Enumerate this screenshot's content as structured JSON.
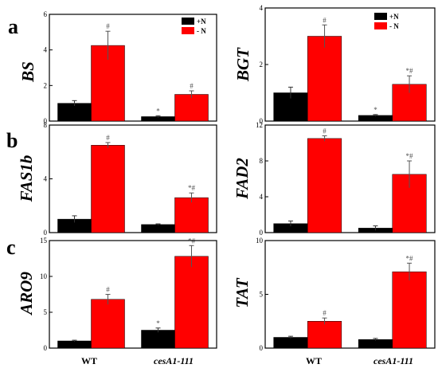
{
  "colors": {
    "plus_n": "#000000",
    "minus_n": "#ff0000"
  },
  "x_categories": [
    "WT",
    "cesA1-111"
  ],
  "legend": [
    {
      "key": "plus_n",
      "label": "+N"
    },
    {
      "key": "minus_n",
      "label": "- N"
    }
  ],
  "panel_letters": [
    "a",
    "b",
    "c"
  ],
  "chart_data": [
    {
      "type": "bar",
      "ylabel": "BS",
      "categories": [
        "WT",
        "cesA1-111"
      ],
      "ylim": [
        0,
        6
      ],
      "yticks": [
        0,
        2,
        4,
        6
      ],
      "series": [
        {
          "name": "+N",
          "values": [
            1.0,
            0.25
          ],
          "errors": [
            0.15,
            0.05
          ],
          "sig": [
            "",
            "*"
          ]
        },
        {
          "name": "- N",
          "values": [
            4.25,
            1.5
          ],
          "errors": [
            0.8,
            0.2
          ],
          "sig": [
            "#",
            "#"
          ]
        }
      ]
    },
    {
      "type": "bar",
      "ylabel": "BGT",
      "categories": [
        "WT",
        "cesA1-111"
      ],
      "ylim": [
        0,
        4
      ],
      "yticks": [
        0,
        2,
        4
      ],
      "series": [
        {
          "name": "+N",
          "values": [
            1.0,
            0.2
          ],
          "errors": [
            0.2,
            0.03
          ],
          "sig": [
            "",
            "*"
          ]
        },
        {
          "name": "- N",
          "values": [
            3.0,
            1.3
          ],
          "errors": [
            0.4,
            0.3
          ],
          "sig": [
            "#",
            "*#"
          ]
        }
      ]
    },
    {
      "type": "bar",
      "ylabel": "FAS1b",
      "categories": [
        "WT",
        "cesA1-111"
      ],
      "ylim": [
        0,
        8
      ],
      "yticks": [
        0,
        4,
        8
      ],
      "series": [
        {
          "name": "+N",
          "values": [
            1.0,
            0.6
          ],
          "errors": [
            0.25,
            0.05
          ],
          "sig": [
            "",
            ""
          ]
        },
        {
          "name": "- N",
          "values": [
            6.5,
            2.6
          ],
          "errors": [
            0.2,
            0.35
          ],
          "sig": [
            "#",
            "*#"
          ]
        }
      ]
    },
    {
      "type": "bar",
      "ylabel": "FAD2",
      "categories": [
        "WT",
        "cesA1-111"
      ],
      "ylim": [
        0,
        12
      ],
      "yticks": [
        0,
        4,
        8,
        12
      ],
      "series": [
        {
          "name": "+N",
          "values": [
            1.0,
            0.5
          ],
          "errors": [
            0.3,
            0.25
          ],
          "sig": [
            "",
            ""
          ]
        },
        {
          "name": "- N",
          "values": [
            10.5,
            6.5
          ],
          "errors": [
            0.3,
            1.5
          ],
          "sig": [
            "#",
            "*#"
          ]
        }
      ]
    },
    {
      "type": "bar",
      "ylabel": "ARO9",
      "categories": [
        "WT",
        "cesA1-111"
      ],
      "ylim": [
        0,
        15
      ],
      "yticks": [
        0,
        5,
        10,
        15
      ],
      "series": [
        {
          "name": "+N",
          "values": [
            1.0,
            2.5
          ],
          "errors": [
            0.1,
            0.3
          ],
          "sig": [
            "",
            "*"
          ]
        },
        {
          "name": "- N",
          "values": [
            6.8,
            12.8
          ],
          "errors": [
            0.7,
            1.5
          ],
          "sig": [
            "#",
            "*#"
          ]
        }
      ]
    },
    {
      "type": "bar",
      "ylabel": "TAT",
      "categories": [
        "WT",
        "cesA1-111"
      ],
      "ylim": [
        0,
        10
      ],
      "yticks": [
        0,
        5,
        10
      ],
      "series": [
        {
          "name": "+N",
          "values": [
            1.0,
            0.8
          ],
          "errors": [
            0.1,
            0.1
          ],
          "sig": [
            "",
            ""
          ]
        },
        {
          "name": "- N",
          "values": [
            2.5,
            7.1
          ],
          "errors": [
            0.3,
            0.8
          ],
          "sig": [
            "#",
            "*#"
          ]
        }
      ]
    }
  ]
}
